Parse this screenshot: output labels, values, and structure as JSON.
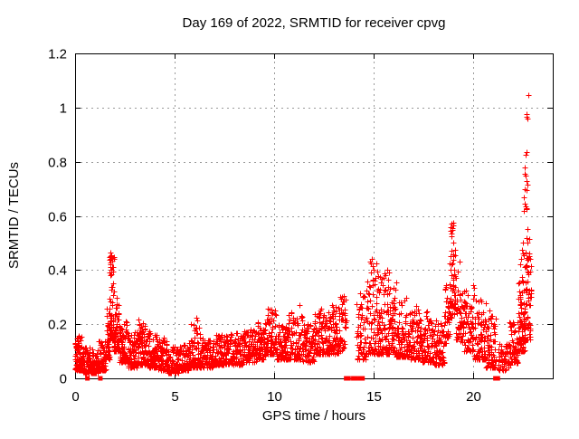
{
  "chart_data": {
    "type": "scatter",
    "title": "Day 169 of 2022, SRMTID for receiver cpvg",
    "xlabel": "GPS time / hours",
    "ylabel": "SRMTID / TECUs",
    "series_name": "SRMTID",
    "xlim": [
      0,
      24
    ],
    "ylim": [
      0,
      1.2
    ],
    "xticks": [
      0,
      5,
      10,
      15,
      20
    ],
    "yticks": [
      0,
      0.2,
      0.4,
      0.6,
      0.8,
      1,
      1.2
    ],
    "grid": true,
    "legend_position": "none",
    "marker": "plus",
    "marker_color": "#ff0000",
    "axis_color": "#000000",
    "grid_color": "#9a9a9a",
    "background": "#ffffff",
    "seed": 169,
    "clusters": [
      [
        0.0,
        0.35,
        70,
        0.03,
        0.16,
        1.6
      ],
      [
        0.35,
        0.85,
        60,
        0.02,
        0.12,
        1.8
      ],
      [
        0.85,
        1.15,
        40,
        0.02,
        0.1,
        1.8
      ],
      [
        1.15,
        1.55,
        50,
        0.03,
        0.14,
        1.8
      ],
      [
        1.55,
        1.75,
        30,
        0.07,
        0.26,
        1.5
      ],
      [
        1.72,
        1.95,
        45,
        0.14,
        0.46,
        1.6
      ],
      [
        1.95,
        2.2,
        40,
        0.1,
        0.3,
        1.8
      ],
      [
        2.2,
        2.65,
        60,
        0.06,
        0.22,
        1.9
      ],
      [
        2.65,
        3.15,
        65,
        0.04,
        0.17,
        1.8
      ],
      [
        3.15,
        3.65,
        65,
        0.05,
        0.22,
        2.0
      ],
      [
        3.65,
        4.15,
        60,
        0.04,
        0.18,
        1.9
      ],
      [
        4.15,
        4.65,
        60,
        0.03,
        0.15,
        1.8
      ],
      [
        4.65,
        5.25,
        60,
        0.02,
        0.12,
        1.7
      ],
      [
        5.25,
        5.75,
        55,
        0.03,
        0.13,
        1.7
      ],
      [
        5.75,
        6.3,
        60,
        0.04,
        0.21,
        2.0
      ],
      [
        6.3,
        7.0,
        70,
        0.04,
        0.15,
        1.7
      ],
      [
        7.0,
        7.7,
        70,
        0.05,
        0.16,
        1.7
      ],
      [
        7.7,
        8.4,
        70,
        0.05,
        0.17,
        1.7
      ],
      [
        8.4,
        9.1,
        70,
        0.06,
        0.18,
        1.7
      ],
      [
        9.1,
        9.55,
        50,
        0.07,
        0.21,
        1.7
      ],
      [
        9.55,
        10.1,
        55,
        0.09,
        0.26,
        1.8
      ],
      [
        10.1,
        10.7,
        60,
        0.07,
        0.2,
        1.7
      ],
      [
        10.7,
        11.45,
        70,
        0.07,
        0.25,
        1.9
      ],
      [
        11.45,
        12.0,
        55,
        0.06,
        0.2,
        1.7
      ],
      [
        12.0,
        12.7,
        65,
        0.09,
        0.26,
        1.8
      ],
      [
        12.7,
        13.3,
        60,
        0.09,
        0.28,
        1.8
      ],
      [
        13.3,
        13.62,
        28,
        0.1,
        0.32,
        1.6
      ],
      [
        14.15,
        14.6,
        40,
        0.07,
        0.33,
        1.8
      ],
      [
        14.6,
        15.15,
        55,
        0.09,
        0.43,
        1.9
      ],
      [
        15.15,
        15.65,
        55,
        0.09,
        0.4,
        1.9
      ],
      [
        15.65,
        16.15,
        60,
        0.09,
        0.38,
        2.0
      ],
      [
        16.15,
        16.75,
        65,
        0.08,
        0.3,
        1.9
      ],
      [
        16.75,
        17.35,
        65,
        0.07,
        0.28,
        1.9
      ],
      [
        17.35,
        18.0,
        65,
        0.06,
        0.25,
        1.9
      ],
      [
        18.0,
        18.55,
        55,
        0.05,
        0.22,
        1.8
      ],
      [
        18.55,
        18.82,
        28,
        0.13,
        0.36,
        1.5
      ],
      [
        18.82,
        19.12,
        45,
        0.22,
        0.575,
        1.4
      ],
      [
        19.12,
        19.55,
        45,
        0.13,
        0.42,
        1.8
      ],
      [
        19.55,
        20.05,
        50,
        0.1,
        0.35,
        1.9
      ],
      [
        20.05,
        20.65,
        60,
        0.07,
        0.3,
        2.0
      ],
      [
        20.65,
        21.15,
        50,
        0.04,
        0.25,
        2.0
      ],
      [
        21.25,
        21.8,
        45,
        0.03,
        0.13,
        1.7
      ],
      [
        21.8,
        22.25,
        50,
        0.05,
        0.21,
        1.7
      ],
      [
        22.25,
        22.6,
        55,
        0.1,
        0.38,
        1.7
      ],
      [
        22.55,
        22.92,
        50,
        0.14,
        0.52,
        1.5
      ]
    ],
    "extra_points": [
      [
        1.78,
        0.465
      ],
      [
        1.81,
        0.45
      ],
      [
        1.75,
        0.44
      ],
      [
        1.84,
        0.4
      ],
      [
        1.79,
        0.42
      ],
      [
        6.08,
        0.225
      ],
      [
        6.12,
        0.215
      ],
      [
        9.78,
        0.255
      ],
      [
        9.85,
        0.245
      ],
      [
        11.28,
        0.27
      ],
      [
        13.42,
        0.3
      ],
      [
        13.52,
        0.285
      ],
      [
        13.38,
        0.295
      ],
      [
        14.3,
        0.315
      ],
      [
        14.45,
        0.3
      ],
      [
        14.92,
        0.44
      ],
      [
        14.97,
        0.415
      ],
      [
        15.02,
        0.4
      ],
      [
        15.7,
        0.4
      ],
      [
        15.78,
        0.39
      ],
      [
        18.9,
        0.57
      ],
      [
        18.95,
        0.555
      ],
      [
        18.88,
        0.545
      ],
      [
        18.93,
        0.525
      ],
      [
        19.0,
        0.5
      ],
      [
        19.3,
        0.43
      ],
      [
        22.38,
        0.42
      ],
      [
        22.42,
        0.44
      ],
      [
        22.47,
        0.475
      ],
      [
        22.5,
        0.5
      ],
      [
        22.52,
        0.46
      ],
      [
        22.74,
        0.55
      ],
      [
        22.56,
        0.62
      ],
      [
        22.7,
        0.625
      ],
      [
        22.67,
        0.63
      ],
      [
        22.63,
        0.635
      ],
      [
        22.59,
        0.645
      ],
      [
        22.55,
        0.67
      ],
      [
        22.66,
        0.695
      ],
      [
        22.61,
        0.7
      ],
      [
        22.72,
        0.715
      ],
      [
        22.69,
        0.73
      ],
      [
        22.64,
        0.75
      ],
      [
        22.58,
        0.755
      ],
      [
        22.6,
        0.78
      ],
      [
        22.63,
        0.825
      ],
      [
        22.66,
        0.835
      ],
      [
        22.68,
        0.965
      ],
      [
        22.73,
        0.96
      ],
      [
        22.7,
        0.975
      ],
      [
        22.77,
        1.045
      ]
    ],
    "zero_markers": [
      0.62,
      1.27,
      13.62,
      13.74,
      13.98,
      14.1,
      14.32,
      14.44,
      21.12,
      21.24
    ]
  }
}
